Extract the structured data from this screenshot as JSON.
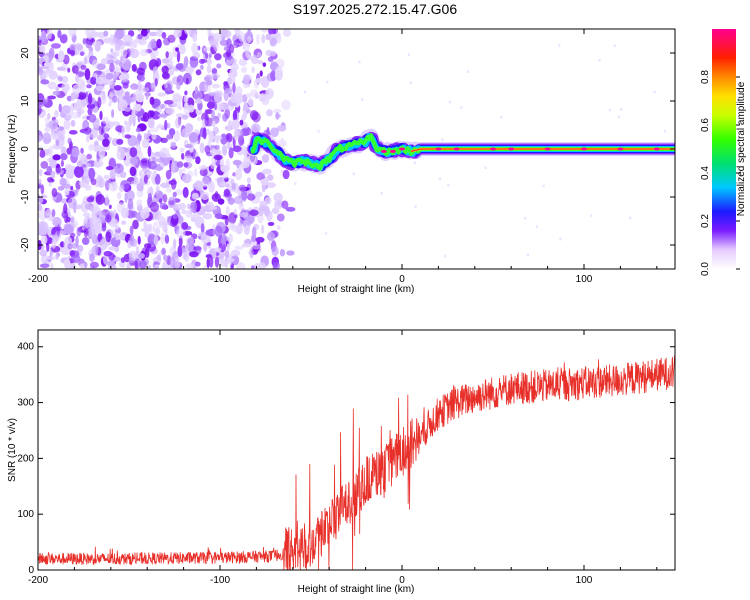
{
  "title": "S197.2025.272.15.47.G06",
  "chart_data": [
    {
      "type": "heatmap",
      "name": "spectrogram",
      "xlabel": "Height of straight line (km)",
      "ylabel": "Frequency (Hz)",
      "xlim": [
        -200,
        150
      ],
      "ylim": [
        -25,
        25
      ],
      "xticks": [
        -200,
        -100,
        0,
        100
      ],
      "yticks": [
        -20,
        -10,
        0,
        10,
        20
      ],
      "colorbar": {
        "label": "Normalized spectral amplitude",
        "range": [
          0,
          1
        ],
        "ticks": [
          "0.0",
          "0.2",
          "0.4",
          "0.6",
          "0.8"
        ],
        "tick_values": [
          0,
          0.2,
          0.4,
          0.6,
          0.8
        ]
      },
      "ridge": {
        "x": [
          -80,
          -75,
          -70,
          -65,
          -60,
          -55,
          -50,
          -45,
          -40,
          -35,
          -30,
          -25,
          -20,
          -17,
          -15,
          -10,
          -5,
          0,
          5,
          10,
          20,
          50,
          100,
          150
        ],
        "y": [
          2,
          1.5,
          0,
          -2,
          -3,
          -2.5,
          -3,
          -3.5,
          -2,
          0,
          0.5,
          1,
          1.5,
          3,
          0.5,
          -0.5,
          -0.5,
          0,
          -0.5,
          0,
          0,
          0,
          0,
          0
        ]
      },
      "noise_region_x": [
        -200,
        -70
      ]
    },
    {
      "type": "line",
      "name": "snr",
      "xlabel": "Height of straight line (km)",
      "ylabel": "SNR (10 * v/v)",
      "xlim": [
        -200,
        150
      ],
      "ylim": [
        0,
        430
      ],
      "xticks": [
        -200,
        -100,
        0,
        100
      ],
      "yticks": [
        0,
        100,
        200,
        300,
        400
      ],
      "color": "#e8302a",
      "trend": {
        "x": [
          -200,
          -150,
          -100,
          -70,
          -60,
          -50,
          -40,
          -30,
          -20,
          -10,
          0,
          10,
          20,
          30,
          40,
          60,
          80,
          100,
          120,
          150
        ],
        "y": [
          20,
          20,
          22,
          25,
          35,
          50,
          80,
          120,
          160,
          180,
          210,
          240,
          280,
          300,
          310,
          325,
          330,
          335,
          340,
          355
        ]
      }
    }
  ]
}
